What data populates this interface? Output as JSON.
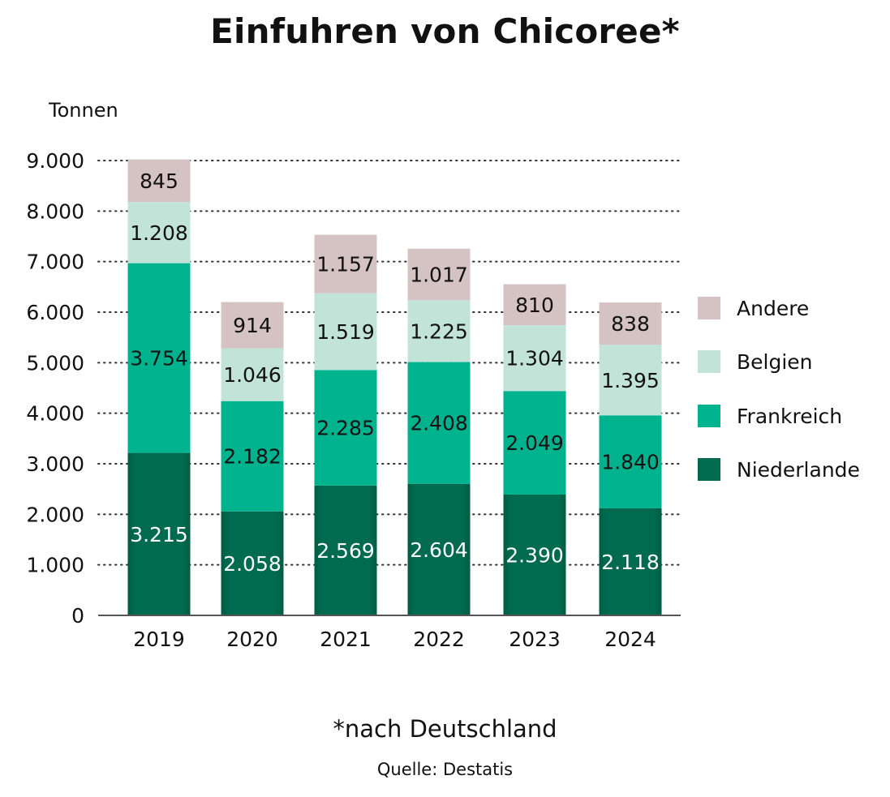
{
  "chart_data": {
    "type": "bar",
    "stacked": true,
    "title": "Einfuhren von Chicoree*",
    "subtitle": "",
    "ylabel": "Tonnen",
    "xlabel": "",
    "footnote": "*nach Deutschland",
    "source": "Quelle: Destatis",
    "categories": [
      "2019",
      "2020",
      "2021",
      "2022",
      "2023",
      "2024"
    ],
    "ylim": [
      0,
      9000
    ],
    "yticks": [
      0,
      1000,
      2000,
      3000,
      4000,
      5000,
      6000,
      7000,
      8000,
      9000
    ],
    "ytick_labels": [
      "0",
      "1.000",
      "2.000",
      "3.000",
      "4.000",
      "5.000",
      "6.000",
      "7.000",
      "8.000",
      "9.000"
    ],
    "grid": "horizontal dotted",
    "legend_position": "right",
    "series": [
      {
        "name": "Niederlande",
        "color": "#006b4f",
        "label_color": "#ffffff",
        "values": [
          3215,
          2058,
          2569,
          2604,
          2390,
          2118
        ],
        "labels": [
          "3.215",
          "2.058",
          "2.569",
          "2.604",
          "2.390",
          "2.118"
        ]
      },
      {
        "name": "Frankreich",
        "color": "#00b38f",
        "label_color": "#111111",
        "values": [
          3754,
          2182,
          2285,
          2408,
          2049,
          1840
        ],
        "labels": [
          "3.754",
          "2.182",
          "2.285",
          "2.408",
          "2.049",
          "1.840"
        ]
      },
      {
        "name": "Belgien",
        "color": "#c2e4d8",
        "label_color": "#111111",
        "values": [
          1208,
          1046,
          1519,
          1225,
          1304,
          1395
        ],
        "labels": [
          "1.208",
          "1.046",
          "1.519",
          "1.225",
          "1.304",
          "1.395"
        ]
      },
      {
        "name": "Andere",
        "color": "#d5c3c3",
        "label_color": "#111111",
        "values": [
          845,
          914,
          1157,
          1017,
          810,
          838
        ],
        "labels": [
          "845",
          "914",
          "1.157",
          "1.017",
          "810",
          "838"
        ]
      }
    ],
    "legend_order": [
      "Andere",
      "Belgien",
      "Frankreich",
      "Niederlande"
    ]
  }
}
